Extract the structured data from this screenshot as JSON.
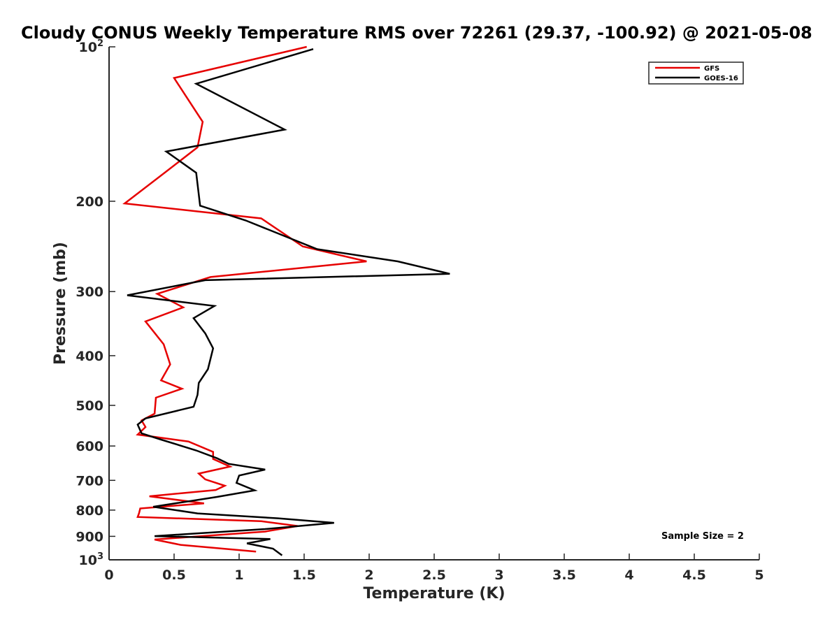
{
  "chart_data": {
    "type": "line",
    "title": "Cloudy CONUS Weekly Temperature RMS over 72261 (29.37, -100.92) @ 2021-05-08",
    "xlabel": "Temperature (K)",
    "ylabel": "Pressure (mb)",
    "xlim": [
      0,
      5
    ],
    "ylim": [
      100,
      1000
    ],
    "yscale": "log",
    "y_reversed": true,
    "x_ticks": [
      0,
      0.5,
      1,
      1.5,
      2,
      2.5,
      3,
      3.5,
      4,
      4.5,
      5
    ],
    "x_tick_labels": [
      "0",
      "0.5",
      "1",
      "1.5",
      "2",
      "2.5",
      "3",
      "3.5",
      "4",
      "4.5",
      "5"
    ],
    "y_ticks": [
      {
        "value": 100,
        "base": "10",
        "exp": "2"
      },
      {
        "value": 200,
        "label": "200"
      },
      {
        "value": 300,
        "label": "300"
      },
      {
        "value": 400,
        "label": "400"
      },
      {
        "value": 500,
        "label": "500"
      },
      {
        "value": 600,
        "label": "600"
      },
      {
        "value": 700,
        "label": "700"
      },
      {
        "value": 800,
        "label": "800"
      },
      {
        "value": 900,
        "label": "900"
      },
      {
        "value": 1000,
        "base": "10",
        "exp": "3"
      }
    ],
    "series": [
      {
        "name": "GFS",
        "color": "#e60000",
        "x": [
          1.52,
          0.5,
          0.72,
          0.68,
          0.44,
          0.12,
          1.17,
          1.49,
          1.98,
          0.78,
          0.37,
          0.57,
          0.28,
          0.42,
          0.47,
          0.4,
          0.56,
          0.36,
          0.35,
          0.25,
          0.28,
          0.22,
          0.61,
          0.8,
          0.8,
          0.93,
          0.69,
          0.74,
          0.89,
          0.82,
          0.31,
          0.73,
          0.24,
          0.23,
          0.22,
          1.17,
          1.45,
          1.2,
          0.35,
          0.55,
          1.13
        ],
        "y": [
          100,
          115,
          140,
          157,
          175,
          202,
          216,
          245,
          262,
          281,
          303,
          322,
          343,
          380,
          416,
          447,
          464,
          483,
          519,
          535,
          551,
          570,
          588,
          616,
          636,
          658,
          679,
          697,
          717,
          731,
          752,
          776,
          794,
          812,
          825,
          841,
          859,
          881,
          913,
          935,
          964
        ]
      },
      {
        "name": "GOES-16",
        "color": "#000000",
        "x": [
          1.57,
          0.67,
          1.35,
          0.44,
          0.67,
          0.7,
          1.05,
          1.6,
          2.22,
          2.62,
          0.74,
          0.14,
          0.81,
          0.65,
          0.74,
          0.8,
          0.76,
          0.69,
          0.68,
          0.65,
          0.28,
          0.22,
          0.25,
          0.4,
          0.67,
          0.83,
          0.92,
          1.2,
          1.0,
          0.98,
          1.12,
          0.83,
          0.34,
          0.68,
          1.3,
          1.73,
          1.2,
          0.35,
          1.24,
          1.06,
          1.26,
          1.33
        ],
        "y": [
          101,
          118,
          145,
          160,
          176,
          204,
          218,
          248,
          262,
          277,
          285,
          305,
          320,
          338,
          362,
          387,
          425,
          452,
          477,
          503,
          530,
          545,
          567,
          583,
          612,
          634,
          650,
          667,
          685,
          708,
          732,
          754,
          788,
          812,
          830,
          847,
          871,
          899,
          911,
          929,
          951,
          980
        ]
      }
    ],
    "legend": {
      "position": "top-right",
      "entries": [
        "GFS",
        "GOES-16"
      ]
    },
    "annotation": "Sample Size = 2"
  }
}
